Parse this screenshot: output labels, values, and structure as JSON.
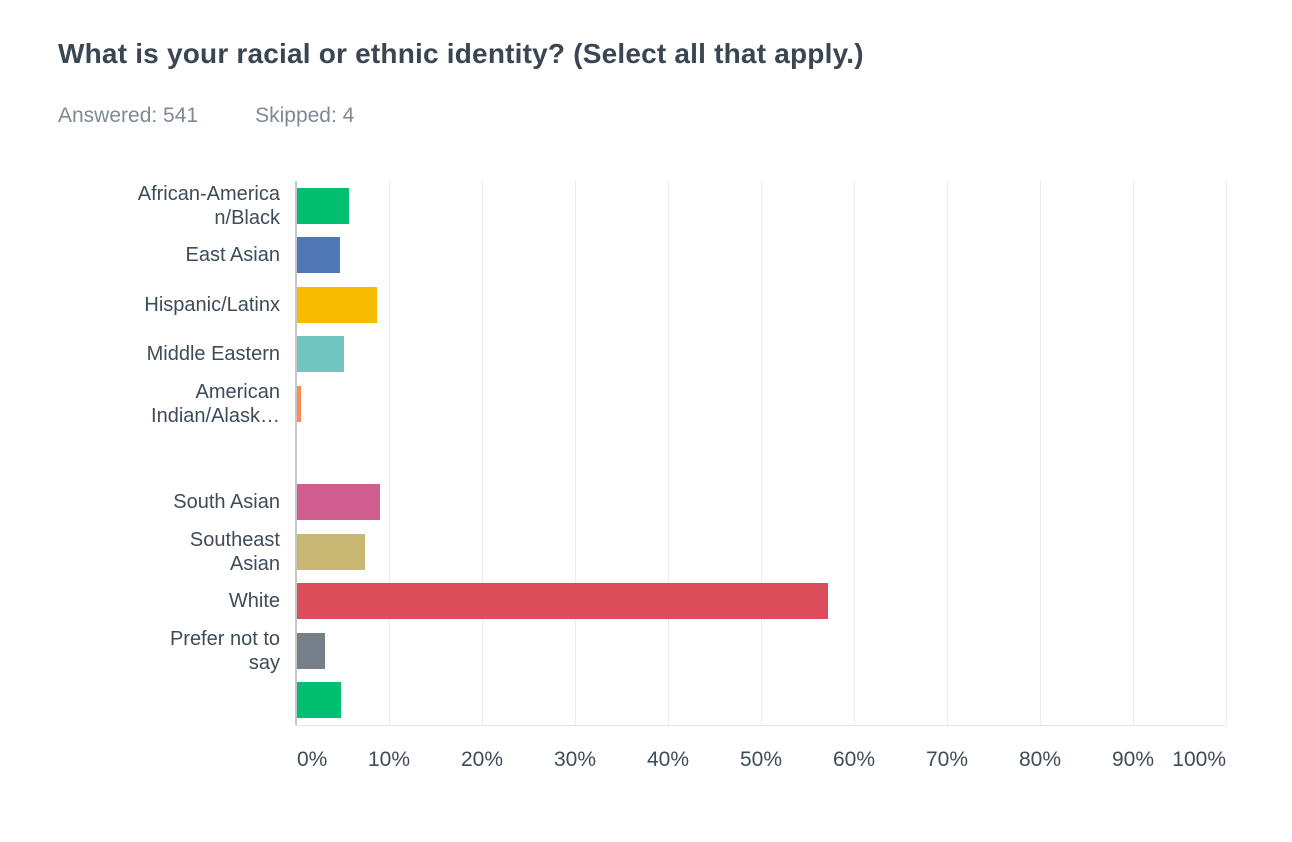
{
  "header": {
    "title": "What is your racial or ethnic identity? (Select all that apply.)",
    "answered": "Answered: 541",
    "skipped": "Skipped: 4"
  },
  "chart_data": {
    "type": "bar",
    "orientation": "horizontal",
    "title": "What is your racial or ethnic identity? (Select all that apply.)",
    "answered": 541,
    "skipped": 4,
    "categories": [
      "African-America\nn/Black",
      "East Asian",
      "Hispanic/Latinx",
      "Middle Eastern",
      "American\nIndian/Alask…",
      "",
      "South Asian",
      "Southeast\nAsian",
      "White",
      "Prefer not to\nsay",
      ""
    ],
    "values_percent": [
      5.6,
      4.6,
      8.6,
      5.1,
      0.4,
      0,
      8.9,
      7.3,
      57.1,
      3.0,
      4.7
    ],
    "bar_colors": [
      "#00BF6F",
      "#5077B5",
      "#F7BB00",
      "#71C6C1",
      "#FB8A52",
      "transparent",
      "#CF5D8E",
      "#C8B873",
      "#DB4D5B",
      "#76808B",
      "#00BF6F"
    ],
    "xlim": [
      0,
      100
    ],
    "x_tick_labels": [
      "0%",
      "10%",
      "20%",
      "30%",
      "40%",
      "50%",
      "60%",
      "70%",
      "80%",
      "90%",
      "100%"
    ],
    "grid": true,
    "legend": false
  },
  "style": {
    "title_color": "#3A4651",
    "subtitle_color": "#7E8994",
    "label_color": "#3E4B59",
    "tick_color": "#3E4B59",
    "axis_line_color": "#C6C6C6",
    "gridline_color": "#ECECEC",
    "baseline_color": "#E4E4E4",
    "background": "#FFFFFF"
  }
}
